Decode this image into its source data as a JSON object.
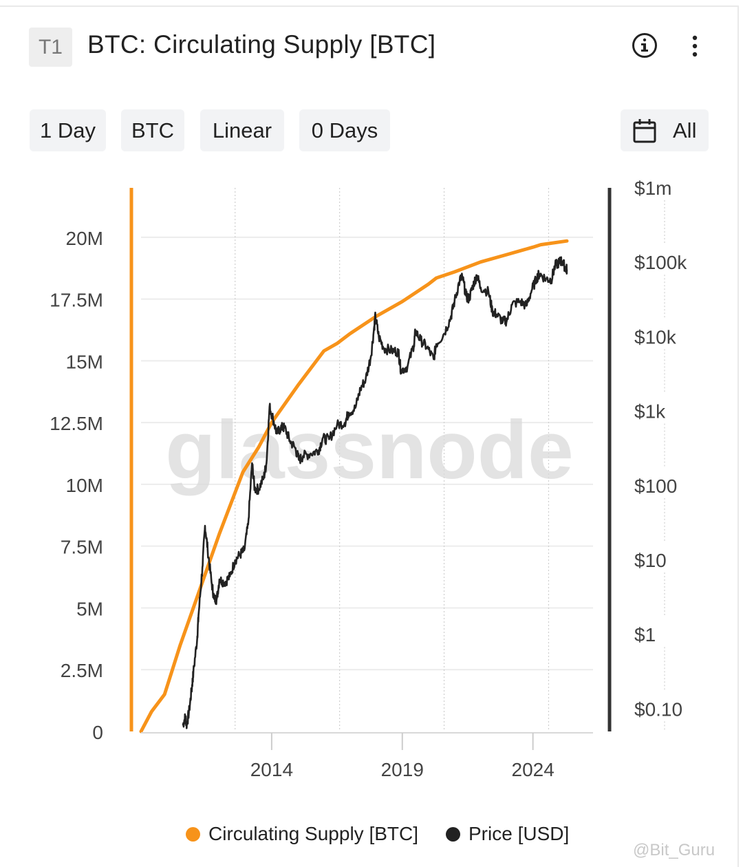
{
  "header": {
    "badge": "T1",
    "title": "BTC: Circulating Supply [BTC]",
    "info_icon": "info-circle-icon",
    "more_icon": "vertical-dots-icon"
  },
  "toolbar": {
    "resolution": "1 Day",
    "currency": "BTC",
    "scale": "Linear",
    "moving_average": "0 Days",
    "range_icon": "calendar-icon",
    "range": "All"
  },
  "watermark": "glassnode",
  "credit": "@Bit_Guru",
  "colors": {
    "supply": "#f7931a",
    "price": "#222222",
    "grid": "#ececec"
  },
  "chart_data": {
    "type": "line",
    "left_axis": {
      "ticks": [
        {
          "value": 0,
          "label": "0"
        },
        {
          "value": 2500000,
          "label": "2.5M"
        },
        {
          "value": 5000000,
          "label": "5M"
        },
        {
          "value": 7500000,
          "label": "7.5M"
        },
        {
          "value": 10000000,
          "label": "10M"
        },
        {
          "value": 12500000,
          "label": "12.5M"
        },
        {
          "value": 15000000,
          "label": "15M"
        },
        {
          "value": 17500000,
          "label": "17.5M"
        },
        {
          "value": 20000000,
          "label": "20M"
        }
      ],
      "range": [
        0,
        22000000
      ]
    },
    "right_axis": {
      "scale": "log",
      "ticks": [
        {
          "value": 0.1,
          "label": "$0.10"
        },
        {
          "value": 1,
          "label": "$1"
        },
        {
          "value": 10,
          "label": "$10"
        },
        {
          "value": 100,
          "label": "$100"
        },
        {
          "value": 1000,
          "label": "$1k"
        },
        {
          "value": 10000,
          "label": "$10k"
        },
        {
          "value": 100000,
          "label": "$100k"
        },
        {
          "value": 1000000,
          "label": "$1m"
        }
      ],
      "range": [
        0.05,
        1000000
      ]
    },
    "x_axis": {
      "range": [
        2009.0,
        2026.3
      ],
      "ticks": [
        {
          "value": 2014,
          "label": "2014"
        },
        {
          "value": 2019,
          "label": "2019"
        },
        {
          "value": 2024,
          "label": "2024"
        }
      ]
    },
    "series": [
      {
        "name": "Circulating Supply [BTC]",
        "axis": "left",
        "color": "#f7931a",
        "points": [
          [
            2009.0,
            0
          ],
          [
            2009.4,
            800000
          ],
          [
            2009.9,
            1500000
          ],
          [
            2010.5,
            3500000
          ],
          [
            2011.0,
            5000000
          ],
          [
            2012.0,
            8000000
          ],
          [
            2012.9,
            10500000
          ],
          [
            2013.5,
            11500000
          ],
          [
            2014.0,
            12500000
          ],
          [
            2015.0,
            14000000
          ],
          [
            2016.0,
            15400000
          ],
          [
            2016.5,
            15700000
          ],
          [
            2017.0,
            16100000
          ],
          [
            2018.0,
            16800000
          ],
          [
            2019.0,
            17400000
          ],
          [
            2020.0,
            18100000
          ],
          [
            2020.3,
            18350000
          ],
          [
            2021.0,
            18600000
          ],
          [
            2022.0,
            19000000
          ],
          [
            2023.0,
            19300000
          ],
          [
            2024.0,
            19600000
          ],
          [
            2024.3,
            19700000
          ],
          [
            2025.3,
            19850000
          ]
        ]
      },
      {
        "name": "Price [USD]",
        "axis": "right",
        "color": "#222222",
        "points": [
          [
            2010.6,
            0.06
          ],
          [
            2010.7,
            0.08
          ],
          [
            2010.75,
            0.06
          ],
          [
            2010.85,
            0.1
          ],
          [
            2010.95,
            0.2
          ],
          [
            2011.0,
            0.3
          ],
          [
            2011.15,
            0.9
          ],
          [
            2011.2,
            1.8
          ],
          [
            2011.35,
            8
          ],
          [
            2011.45,
            29
          ],
          [
            2011.55,
            14
          ],
          [
            2011.7,
            5
          ],
          [
            2011.8,
            3
          ],
          [
            2011.9,
            3
          ],
          [
            2012.0,
            5.5
          ],
          [
            2012.2,
            5
          ],
          [
            2012.4,
            6
          ],
          [
            2012.6,
            10
          ],
          [
            2012.8,
            12
          ],
          [
            2012.95,
            13.5
          ],
          [
            2013.1,
            30
          ],
          [
            2013.25,
            200
          ],
          [
            2013.35,
            90
          ],
          [
            2013.5,
            90
          ],
          [
            2013.7,
            130
          ],
          [
            2013.8,
            200
          ],
          [
            2013.92,
            1150
          ],
          [
            2014.05,
            800
          ],
          [
            2014.2,
            500
          ],
          [
            2014.35,
            600
          ],
          [
            2014.5,
            600
          ],
          [
            2014.7,
            400
          ],
          [
            2014.9,
            320
          ],
          [
            2015.05,
            220
          ],
          [
            2015.2,
            250
          ],
          [
            2015.5,
            270
          ],
          [
            2015.8,
            300
          ],
          [
            2015.95,
            430
          ],
          [
            2016.2,
            420
          ],
          [
            2016.5,
            650
          ],
          [
            2016.8,
            700
          ],
          [
            2016.95,
            960
          ],
          [
            2017.2,
            1100
          ],
          [
            2017.4,
            2000
          ],
          [
            2017.6,
            2700
          ],
          [
            2017.8,
            5500
          ],
          [
            2017.93,
            14000
          ],
          [
            2017.97,
            19000
          ],
          [
            2018.1,
            10000
          ],
          [
            2018.3,
            7000
          ],
          [
            2018.6,
            6500
          ],
          [
            2018.85,
            6300
          ],
          [
            2018.95,
            3500
          ],
          [
            2019.2,
            4000
          ],
          [
            2019.45,
            8000
          ],
          [
            2019.5,
            12000
          ],
          [
            2019.7,
            9000
          ],
          [
            2019.95,
            7200
          ],
          [
            2020.2,
            5000
          ],
          [
            2020.3,
            8000
          ],
          [
            2020.6,
            11000
          ],
          [
            2020.85,
            18000
          ],
          [
            2021.0,
            30000
          ],
          [
            2021.2,
            58000
          ],
          [
            2021.3,
            63000
          ],
          [
            2021.45,
            35000
          ],
          [
            2021.55,
            32000
          ],
          [
            2021.7,
            48000
          ],
          [
            2021.85,
            67000
          ],
          [
            2022.0,
            46000
          ],
          [
            2022.3,
            40000
          ],
          [
            2022.45,
            22000
          ],
          [
            2022.6,
            20000
          ],
          [
            2022.85,
            16000
          ],
          [
            2023.0,
            16500
          ],
          [
            2023.2,
            27000
          ],
          [
            2023.5,
            30000
          ],
          [
            2023.75,
            26000
          ],
          [
            2023.95,
            42000
          ],
          [
            2024.15,
            62000
          ],
          [
            2024.25,
            70000
          ],
          [
            2024.5,
            60000
          ],
          [
            2024.7,
            58000
          ],
          [
            2024.85,
            90000
          ],
          [
            2025.0,
            100000
          ],
          [
            2025.1,
            105000
          ],
          [
            2025.25,
            84000
          ],
          [
            2025.3,
            80000
          ]
        ]
      }
    ]
  },
  "legend": [
    {
      "label": "Circulating Supply [BTC]",
      "color": "#f7931a"
    },
    {
      "label": "Price [USD]",
      "color": "#222222"
    }
  ]
}
